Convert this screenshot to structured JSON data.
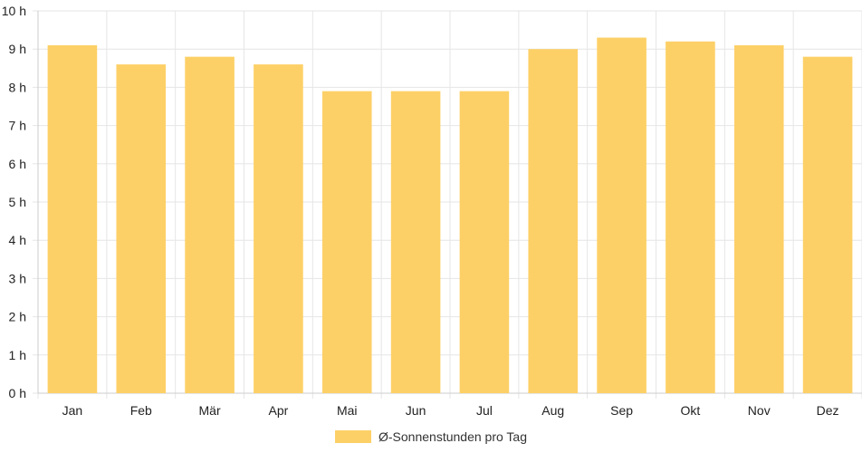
{
  "chart_data": {
    "type": "bar",
    "categories": [
      "Jan",
      "Feb",
      "Mär",
      "Apr",
      "Mai",
      "Jun",
      "Jul",
      "Aug",
      "Sep",
      "Okt",
      "Nov",
      "Dez"
    ],
    "series": [
      {
        "name": "Ø-Sonnenstunden pro Tag",
        "values": [
          9.1,
          8.6,
          8.8,
          8.6,
          7.9,
          7.9,
          7.9,
          9.0,
          9.3,
          9.2,
          9.1,
          8.8
        ]
      }
    ],
    "ylim": [
      0,
      10
    ],
    "y_ticks": [
      "0 h",
      "1 h",
      "2 h",
      "3 h",
      "4 h",
      "5 h",
      "6 h",
      "7 h",
      "8 h",
      "9 h",
      "10 h"
    ],
    "grid": true,
    "legend_position": "bottom",
    "colors": {
      "bar": "#fdd067",
      "grid": "#e6e6e6",
      "axis": "#cccccc"
    }
  }
}
